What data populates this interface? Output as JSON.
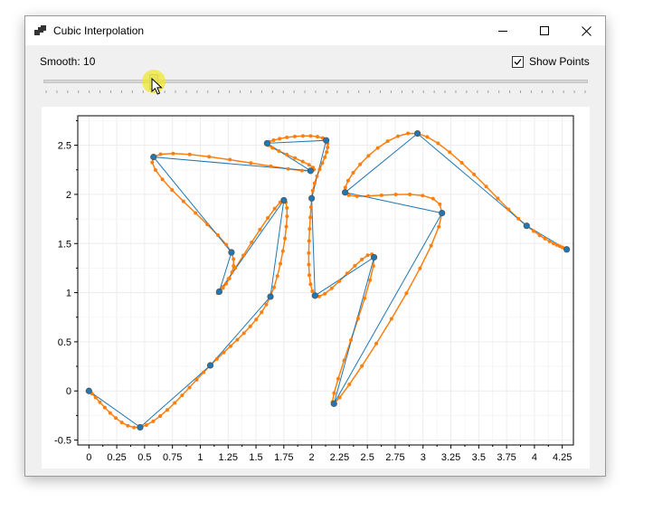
{
  "window": {
    "title": "Cubic Interpolation",
    "app_icon": "app-icon",
    "buttons": [
      "minimize-icon",
      "maximize-icon",
      "close-icon"
    ]
  },
  "controls": {
    "smooth_label": "Smooth: 10",
    "smooth_value": 10,
    "smooth_min": 0,
    "smooth_max": 50,
    "show_points_label": "Show Points",
    "show_points_checked": true
  },
  "colors": {
    "line": "#1f77b4",
    "curve": "#ff7f0e",
    "highlight": "#f0e828"
  },
  "chart_data": {
    "type": "line",
    "title": "",
    "xlabel": "",
    "ylabel": "",
    "xlim": [
      -0.1,
      4.35
    ],
    "ylim": [
      -0.55,
      2.8
    ],
    "grid": true,
    "xticks": [
      0,
      0.25,
      0.5,
      0.75,
      1,
      1.25,
      1.5,
      1.75,
      2,
      2.25,
      2.5,
      2.75,
      3,
      3.25,
      3.5,
      3.75,
      4,
      4.25
    ],
    "xtick_labels": [
      "0",
      "0.25",
      "0.5",
      "0.75",
      "1",
      "1.25",
      "1.5",
      "1.75",
      "2",
      "2.25",
      "2.5",
      "2.75",
      "3",
      "3.25",
      "3.5",
      "3.75",
      "4",
      "4.25"
    ],
    "yticks": [
      -0.5,
      0,
      0.5,
      1,
      1.5,
      2,
      2.5
    ],
    "ytick_labels": [
      "-0.5",
      "0",
      "0.5",
      "1",
      "1.5",
      "2",
      "2.5"
    ],
    "series": [
      {
        "kind": "original-points-line",
        "x": [
          0,
          0.46,
          1.09,
          1.63,
          1.75,
          1.17,
          1.28,
          0.58,
          1.99,
          1.6,
          2.13,
          2.0,
          2.03,
          2.56,
          2.2,
          3.17,
          2.3,
          2.95,
          3.93,
          4.29
        ],
        "y": [
          0,
          -0.37,
          0.26,
          0.96,
          1.94,
          1.01,
          1.41,
          2.38,
          2.24,
          2.52,
          2.55,
          1.96,
          0.97,
          1.36,
          -0.13,
          1.81,
          2.02,
          2.62,
          1.68,
          1.44
        ]
      },
      {
        "kind": "interpolated-curve",
        "smooth": 10
      }
    ]
  }
}
